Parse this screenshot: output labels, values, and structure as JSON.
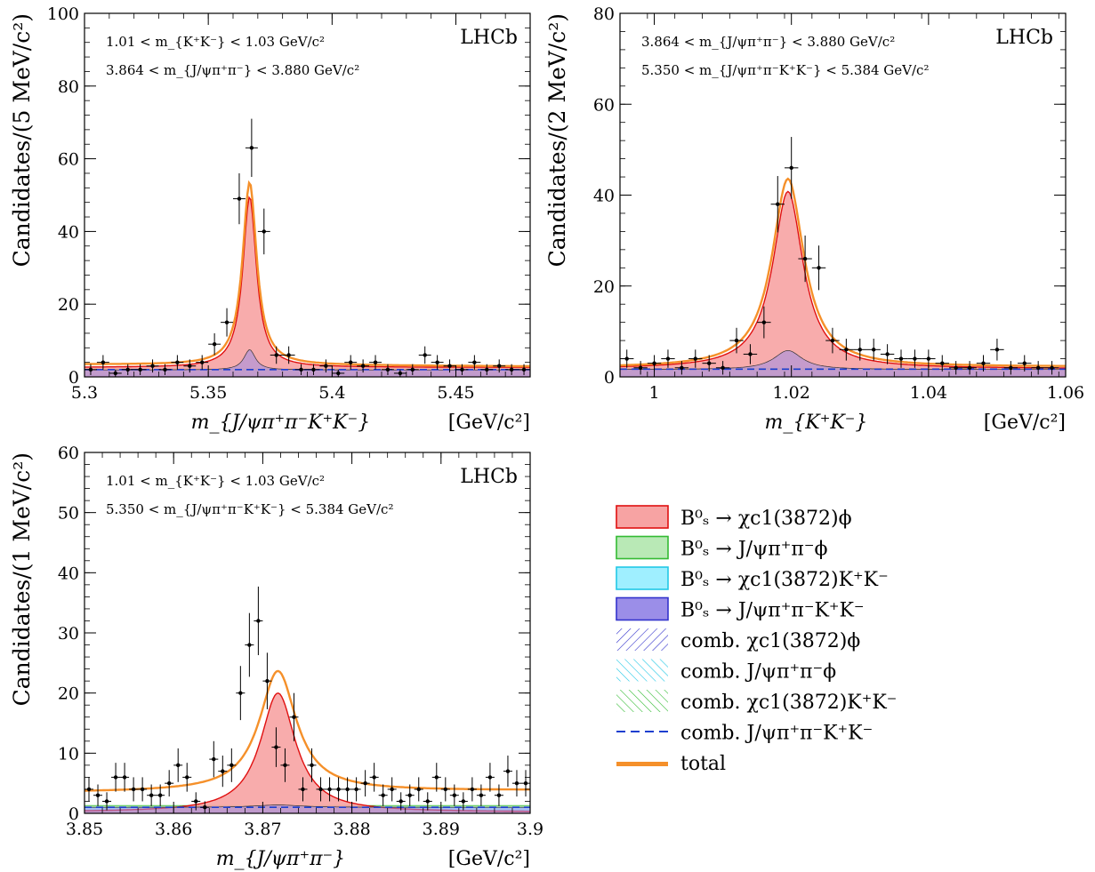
{
  "colors": {
    "signal_fill": "#f7a3a3",
    "signal_line": "#e01010",
    "jpsipipiphi_fill": "#b9e9b6",
    "jpsipipiphi_line": "#33bb33",
    "chiKK_fill": "#9fefff",
    "chiKK_line": "#22c8e6",
    "nonres_fill": "#9b8ee8",
    "nonres_line": "#3333cc",
    "comb_line": "#1d3fcf",
    "total_line": "#f5902a",
    "data": "#000000"
  },
  "chart_data": [
    {
      "type": "line",
      "id": "mass-jpsipipikk",
      "ylabel": "Candidates/(5 MeV/c²)",
      "xlabel": "m_{J/ψπ⁺π⁻K⁺K⁻}",
      "xunit": "[GeV/c²]",
      "lhcb_label": "LHCb",
      "cuts": [
        "1.01 < m_{K⁺K⁻} < 1.03 GeV/c²",
        "3.864 < m_{J/ψπ⁺π⁻} < 3.880 GeV/c²"
      ],
      "xlim": [
        5.3,
        5.48
      ],
      "ylim": [
        0,
        100
      ],
      "xticks": [
        5.3,
        5.35,
        5.4,
        5.45
      ],
      "xtick_labels": [
        "5.3",
        "5.35",
        "5.4",
        "5.45"
      ],
      "yticks": [
        0,
        20,
        40,
        60,
        80,
        100
      ],
      "ytick_labels": [
        "0",
        "20",
        "40",
        "60",
        "80",
        "100"
      ],
      "data_points": {
        "x": [
          5.3025,
          5.3075,
          5.3125,
          5.3175,
          5.3225,
          5.3275,
          5.3325,
          5.3375,
          5.3425,
          5.3475,
          5.3525,
          5.3575,
          5.3625,
          5.3675,
          5.3725,
          5.3775,
          5.3825,
          5.3875,
          5.3925,
          5.3975,
          5.4025,
          5.4075,
          5.4125,
          5.4175,
          5.4225,
          5.4275,
          5.4325,
          5.4375,
          5.4425,
          5.4475,
          5.4525,
          5.4575,
          5.4625,
          5.4675,
          5.4725,
          5.4775
        ],
        "y": [
          2,
          4,
          1,
          2,
          2,
          3,
          2,
          4,
          3,
          4,
          9,
          15,
          49,
          63,
          40,
          6,
          6,
          2,
          2,
          3,
          1,
          4,
          3,
          4,
          2,
          1,
          2,
          6,
          4,
          3,
          2,
          4,
          2,
          3,
          2,
          2
        ],
        "err": [
          1.5,
          2,
          1,
          1.5,
          1.5,
          1.8,
          1.5,
          2,
          1.8,
          2,
          3,
          3.9,
          7,
          8,
          6.3,
          2.4,
          2.4,
          1.5,
          1.5,
          1.8,
          1,
          2,
          1.8,
          2,
          1.5,
          1,
          1.5,
          2.4,
          2,
          1.8,
          1.5,
          2,
          1.5,
          1.8,
          1.5,
          1.5
        ]
      },
      "signal": {
        "mean": 5.3667,
        "width": 0.0033,
        "peak": 47
      },
      "signal_baseline": 2.6,
      "secondary": {
        "mean": 5.3667,
        "width": 0.0028,
        "peak": 5.6
      },
      "background": {
        "bands": [
          {
            "from": 0.0,
            "to": 0.4
          },
          {
            "from": 0.4,
            "to": 1.9
          },
          {
            "from": 1.9,
            "to": 2.2
          }
        ],
        "comb_level": 2.0
      },
      "total": {
        "baseline": 3.4,
        "tail_to": 2.9
      }
    },
    {
      "type": "line",
      "id": "mass-kk",
      "ylabel": "Candidates/(2 MeV/c²)",
      "xlabel": "m_{K⁺K⁻}",
      "xunit": "[GeV/c²]",
      "lhcb_label": "LHCb",
      "cuts": [
        "3.864 < m_{J/ψπ⁺π⁻} < 3.880 GeV/c²",
        "5.350 < m_{J/ψπ⁺π⁻K⁺K⁻} < 5.384 GeV/c²"
      ],
      "xlim": [
        0.995,
        1.06
      ],
      "ylim": [
        0,
        80
      ],
      "xticks": [
        1.0,
        1.02,
        1.04,
        1.06
      ],
      "xtick_labels": [
        "1",
        "1.02",
        "1.04",
        "1.06"
      ],
      "yticks": [
        0,
        20,
        40,
        60,
        80
      ],
      "ytick_labels": [
        "0",
        "20",
        "40",
        "60",
        "80"
      ],
      "data_points": {
        "x": [
          0.996,
          0.998,
          1.0,
          1.002,
          1.004,
          1.006,
          1.008,
          1.01,
          1.012,
          1.014,
          1.016,
          1.018,
          1.02,
          1.022,
          1.024,
          1.026,
          1.028,
          1.03,
          1.032,
          1.034,
          1.036,
          1.038,
          1.04,
          1.042,
          1.044,
          1.046,
          1.048,
          1.05,
          1.052,
          1.054,
          1.056,
          1.058
        ],
        "y": [
          4,
          2,
          3,
          4,
          2,
          4,
          3,
          2,
          8,
          5,
          12,
          38,
          46,
          26,
          24,
          8,
          6,
          6,
          6,
          5,
          4,
          4,
          4,
          3,
          2,
          2,
          3,
          6,
          2,
          3,
          2,
          2
        ],
        "err": [
          2,
          1.5,
          1.8,
          2,
          1.5,
          2,
          1.8,
          1.5,
          2.8,
          2.2,
          3.5,
          6.2,
          6.8,
          5.1,
          4.9,
          2.8,
          2.4,
          2.4,
          2.4,
          2.2,
          2,
          2,
          2,
          1.8,
          1.5,
          1.5,
          1.8,
          2.4,
          1.5,
          1.8,
          1.5,
          1.5
        ]
      },
      "signal": {
        "mean": 1.0195,
        "width": 0.0027,
        "peak": 39
      },
      "signal_baseline": 1.8,
      "secondary": {
        "mean": 1.0195,
        "width": 0.0025,
        "peak": 4.2
      },
      "background": {
        "bands": [
          {
            "from": 0.0,
            "to": 0.3
          },
          {
            "from": 0.3,
            "to": 1.6
          },
          {
            "from": 1.6,
            "to": 1.9
          }
        ],
        "comb_level": 1.7
      },
      "total": {
        "baseline": 2.0,
        "tail_to": 2.2
      }
    },
    {
      "type": "line",
      "id": "mass-jpsipipi",
      "ylabel": "Candidates/(1 MeV/c²)",
      "xlabel": "m_{J/ψπ⁺π⁻}",
      "xunit": "[GeV/c²]",
      "lhcb_label": "LHCb",
      "cuts": [
        "1.01 < m_{K⁺K⁻} < 1.03 GeV/c²",
        "5.350 < m_{J/ψπ⁺π⁻K⁺K⁻} < 5.384 GeV/c²"
      ],
      "xlim": [
        3.85,
        3.9
      ],
      "ylim": [
        0,
        60
      ],
      "xticks": [
        3.85,
        3.86,
        3.87,
        3.88,
        3.89,
        3.9
      ],
      "xtick_labels": [
        "3.85",
        "3.86",
        "3.87",
        "3.88",
        "3.89",
        "3.9"
      ],
      "yticks": [
        0,
        10,
        20,
        30,
        40,
        50,
        60
      ],
      "ytick_labels": [
        "0",
        "10",
        "20",
        "30",
        "40",
        "50",
        "60"
      ],
      "data_points": {
        "x": [
          3.8505,
          3.8515,
          3.8525,
          3.8535,
          3.8545,
          3.8555,
          3.8565,
          3.8575,
          3.8585,
          3.8595,
          3.8605,
          3.8615,
          3.8625,
          3.8635,
          3.8645,
          3.8655,
          3.8665,
          3.8675,
          3.8685,
          3.8695,
          3.8705,
          3.8715,
          3.8725,
          3.8735,
          3.8745,
          3.8755,
          3.8765,
          3.8775,
          3.8785,
          3.8795,
          3.8805,
          3.8815,
          3.8825,
          3.8835,
          3.8845,
          3.8855,
          3.8865,
          3.8875,
          3.8885,
          3.8895,
          3.8905,
          3.8915,
          3.8925,
          3.8935,
          3.8945,
          3.8955,
          3.8965,
          3.8975,
          3.8985,
          3.8995
        ],
        "y": [
          4,
          3,
          2,
          6,
          6,
          4,
          4,
          3,
          3,
          5,
          8,
          6,
          2,
          1,
          9,
          7,
          8,
          20,
          28,
          32,
          22,
          11,
          8,
          16,
          4,
          8,
          4,
          4,
          4,
          4,
          4,
          5,
          6,
          3,
          4,
          2,
          3,
          4,
          2,
          6,
          4,
          3,
          2,
          4,
          3,
          6,
          3,
          7,
          5,
          5
        ],
        "err": [
          2,
          1.8,
          1.5,
          2.4,
          2.4,
          2,
          2,
          1.8,
          1.8,
          2.2,
          2.8,
          2.4,
          1.5,
          1,
          3,
          2.6,
          2.8,
          4.5,
          5.3,
          5.7,
          4.7,
          3.3,
          2.8,
          4,
          2,
          2.8,
          2,
          2,
          2,
          2,
          2,
          2.2,
          2.4,
          1.8,
          2,
          1.5,
          1.8,
          2,
          1.5,
          2.4,
          2,
          1.8,
          1.5,
          2,
          1.8,
          2.4,
          1.8,
          2.6,
          2.2,
          2.2
        ]
      },
      "signal": {
        "mean": 3.8717,
        "width": 0.0024,
        "peak": 19.8
      },
      "signal_baseline": 0.2,
      "secondary": {
        "mean": 3.8717,
        "width": 0.003,
        "peak": 0.4
      },
      "background": {
        "bands": [
          {
            "from": 0.0,
            "to": 0.3
          },
          {
            "from": 0.3,
            "to": 1.0
          },
          {
            "from": 1.0,
            "to": 1.3
          }
        ],
        "comb_level": 1.0
      },
      "total": {
        "baseline": 3.5,
        "tail_to": 3.8
      }
    }
  ],
  "legend": {
    "items": [
      {
        "key": "signal",
        "label": "B⁰ₛ → χc1(3872)ϕ"
      },
      {
        "key": "jpsipipiphi",
        "label": "B⁰ₛ → J/ψπ⁺π⁻ϕ"
      },
      {
        "key": "chiKK",
        "label": "B⁰ₛ → χc1(3872)K⁺K⁻"
      },
      {
        "key": "nonres",
        "label": "B⁰ₛ → J/ψπ⁺π⁻K⁺K⁻"
      },
      {
        "key": "comb_chiphi",
        "label": "comb. χc1(3872)ϕ"
      },
      {
        "key": "comb_jpsiphi",
        "label": "comb. J/ψπ⁺π⁻ϕ"
      },
      {
        "key": "comb_chiKK",
        "label": "comb. χc1(3872)K⁺K⁻"
      },
      {
        "key": "comb_jpsiKK",
        "label": "comb. J/ψπ⁺π⁻K⁺K⁻"
      },
      {
        "key": "total",
        "label": "total"
      }
    ]
  }
}
